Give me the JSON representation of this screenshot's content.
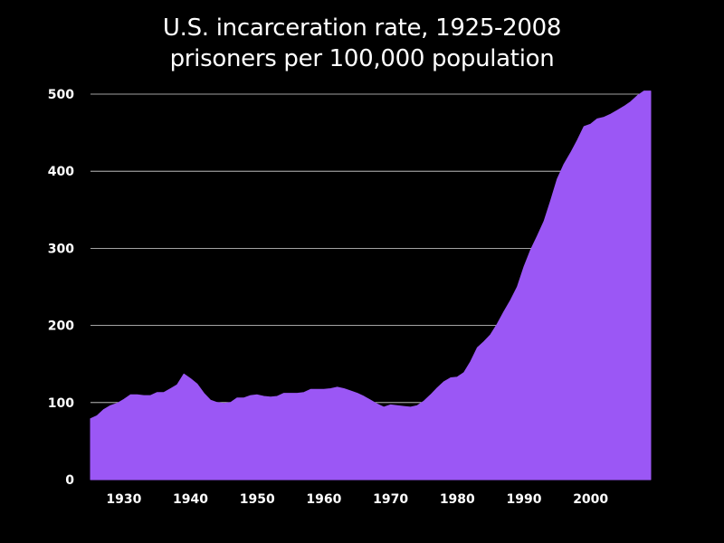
{
  "chart_data": {
    "type": "area",
    "title": "U.S. incarceration rate, 1925-2008",
    "subtitle": "prisoners per 100,000 population",
    "xlabel": "",
    "ylabel": "",
    "xlim": [
      1925,
      2009
    ],
    "ylim": [
      0,
      500
    ],
    "x_ticks": [
      1930,
      1940,
      1950,
      1960,
      1970,
      1980,
      1990,
      2000
    ],
    "y_ticks": [
      0,
      100,
      200,
      300,
      400,
      500
    ],
    "grid": "horizontal",
    "legend": "none",
    "fill_color": "#9b57f5",
    "series": [
      {
        "x": [
          1925,
          1926,
          1927,
          1928,
          1929,
          1930,
          1931,
          1932,
          1933,
          1934,
          1935,
          1936,
          1937,
          1938,
          1939,
          1940,
          1941,
          1942,
          1943,
          1944,
          1945,
          1946,
          1947,
          1948,
          1949,
          1950,
          1951,
          1952,
          1953,
          1954,
          1955,
          1956,
          1957,
          1958,
          1959,
          1960,
          1961,
          1962,
          1963,
          1964,
          1965,
          1966,
          1967,
          1968,
          1969,
          1970,
          1971,
          1972,
          1973,
          1974,
          1975,
          1976,
          1977,
          1978,
          1979,
          1980,
          1981,
          1982,
          1983,
          1984,
          1985,
          1986,
          1987,
          1988,
          1989,
          1990,
          1991,
          1992,
          1993,
          1994,
          1995,
          1996,
          1997,
          1998,
          1999,
          2000,
          2001,
          2002,
          2003,
          2004,
          2005,
          2006,
          2007,
          2008,
          2009
        ],
        "values": [
          79,
          83,
          91,
          96,
          99,
          104,
          110,
          110,
          109,
          109,
          113,
          113,
          118,
          123,
          137,
          131,
          124,
          112,
          103,
          100,
          99,
          100,
          106,
          106,
          109,
          110,
          108,
          107,
          108,
          112,
          112,
          112,
          113,
          117,
          117,
          117,
          118,
          120,
          118,
          115,
          112,
          108,
          103,
          98,
          94,
          97,
          96,
          95,
          94,
          96,
          102,
          110,
          119,
          127,
          132,
          133,
          139,
          153,
          171,
          179,
          188,
          202,
          218,
          233,
          250,
          276,
          298,
          316,
          335,
          362,
          390,
          409,
          424,
          440,
          458,
          461,
          468,
          470,
          474,
          479,
          484,
          490,
          498,
          504,
          504
        ]
      }
    ]
  }
}
